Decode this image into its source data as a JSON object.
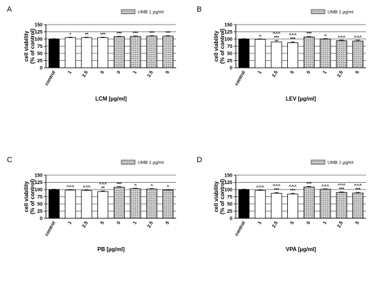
{
  "colors": {
    "control": "#000000",
    "plain": "#ffffff",
    "umb": "#c8c8c8",
    "stroke": "#000000"
  },
  "chart_data": [
    {
      "type": "bar",
      "panel": "A",
      "categories": [
        "control",
        "1",
        "2.5",
        "5",
        "0",
        "1",
        "2.5",
        "5"
      ],
      "series": [
        {
          "values": [
            100,
            105,
            105,
            105,
            108,
            109,
            110,
            110
          ]
        }
      ],
      "errors": [
        1,
        1.5,
        1.5,
        1.5,
        1.5,
        1.5,
        1.5,
        1.5
      ],
      "fills": [
        "control",
        "plain",
        "plain",
        "plain",
        "umb",
        "umb",
        "umb",
        "umb"
      ],
      "significance": [
        "",
        "*",
        "**",
        "***",
        "***",
        "***",
        "***",
        "***"
      ],
      "xlabel": "LCM [µg/ml]",
      "ylabel": [
        "cell viability",
        "(% of control)"
      ],
      "yticks": [
        0,
        25,
        50,
        75,
        100,
        125,
        150
      ],
      "ylim": [
        0,
        150
      ],
      "legend": "UMB 1 µg/ml",
      "legend_position": "top-right"
    },
    {
      "type": "bar",
      "panel": "B",
      "categories": [
        "control",
        "1",
        "2.5",
        "5",
        "0",
        "1",
        "2.5",
        "5"
      ],
      "series": [
        {
          "values": [
            100,
            99,
            90,
            87,
            107,
            100,
            94,
            93
          ]
        }
      ],
      "errors": [
        1,
        1.5,
        5,
        3,
        2,
        1.5,
        2,
        3
      ],
      "fills": [
        "control",
        "plain",
        "plain",
        "plain",
        "umb",
        "umb",
        "umb",
        "umb"
      ],
      "significance": [
        "",
        "^",
        "^^^\n***",
        "^^^\n***",
        "***",
        "^",
        "^^^",
        "^^^"
      ],
      "xlabel": "LEV [µg/ml]",
      "ylabel": [
        "cell viability",
        "(% of control)"
      ],
      "yticks": [
        0,
        25,
        50,
        75,
        100,
        125,
        150
      ],
      "ylim": [
        0,
        150
      ],
      "legend": "UMB 1 µg/ml",
      "legend_position": "top-right"
    },
    {
      "type": "bar",
      "panel": "C",
      "categories": [
        "control",
        "1",
        "2.5",
        "5",
        "0",
        "1",
        "2.5",
        "5"
      ],
      "series": [
        {
          "values": [
            100,
            98,
            97,
            93,
            108,
            103,
            102,
            98
          ]
        }
      ],
      "errors": [
        1,
        1.5,
        1.5,
        2,
        2,
        1.5,
        1.5,
        1.5
      ],
      "fills": [
        "control",
        "plain",
        "plain",
        "plain",
        "umb",
        "umb",
        "umb",
        "umb"
      ],
      "significance": [
        "",
        "^^^",
        "^^^",
        "^^^\n**",
        "***",
        "^",
        "^",
        "^"
      ],
      "xlabel": "PB [µg/ml]",
      "ylabel": [
        "cell viability",
        "(% of control)"
      ],
      "yticks": [
        0,
        25,
        50,
        75,
        100,
        125,
        150
      ],
      "ylim": [
        0,
        150
      ],
      "legend": "UMB 1 µg/ml",
      "legend_position": "top-right"
    },
    {
      "type": "bar",
      "panel": "D",
      "categories": [
        "control",
        "1",
        "2.5",
        "5",
        "0",
        "1",
        "2.5",
        "5"
      ],
      "series": [
        {
          "values": [
            100,
            97,
            87,
            84,
            109,
            101,
            90,
            88
          ]
        }
      ],
      "errors": [
        1,
        1.5,
        2,
        2.5,
        2,
        1.5,
        2,
        2
      ],
      "fills": [
        "control",
        "plain",
        "plain",
        "plain",
        "umb",
        "umb",
        "umb",
        "umb"
      ],
      "significance": [
        "",
        "^^^",
        "^^^\n***",
        "^^^\n***",
        "***",
        "^^^",
        "^^^\n***",
        "^^^\n***"
      ],
      "xlabel": "VPA [µg/ml]",
      "ylabel": [
        "cell viability",
        "(% of control)"
      ],
      "yticks": [
        0,
        25,
        50,
        75,
        100,
        125,
        150
      ],
      "ylim": [
        0,
        150
      ],
      "legend": "UMB 1 µg/ml",
      "legend_position": "top-right"
    }
  ]
}
